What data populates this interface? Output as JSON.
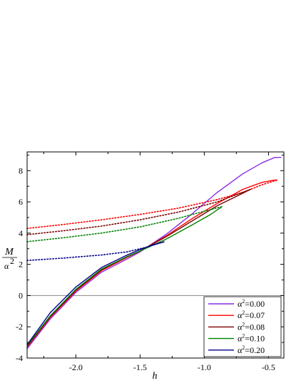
{
  "chart_data": {
    "type": "line",
    "title": "",
    "xlabel": "h",
    "ylabel_num": "M",
    "ylabel_den_base": "α",
    "ylabel_den_exp": "2",
    "xlim": [
      -2.38,
      -0.38
    ],
    "ylim": [
      -4,
      9.2
    ],
    "xticks": [
      -2.0,
      -1.5,
      -1.0,
      -0.5
    ],
    "xtick_labels": [
      "-2.0",
      "-1.5",
      "-1.0",
      "-0.5"
    ],
    "yticks": [
      -4,
      -2,
      0,
      2,
      4,
      6,
      8
    ],
    "ytick_labels": [
      "-4",
      "-2",
      "0",
      "2",
      "4",
      "6",
      "8"
    ],
    "zero_line": true,
    "grid": false,
    "legend_position": "bottom-right",
    "series": [
      {
        "name": "α²=0.00",
        "legend_base": "α",
        "legend_exp": "2",
        "legend_tail": "=0.00",
        "color": "#8a2be2",
        "solid": [
          [
            -2.38,
            -3.4
          ],
          [
            -2.2,
            -1.5
          ],
          [
            -2.0,
            0.2
          ],
          [
            -1.8,
            1.5
          ],
          [
            -1.6,
            2.35
          ],
          [
            -1.5,
            2.8
          ],
          [
            -1.3,
            3.9
          ],
          [
            -1.1,
            5.2
          ],
          [
            -0.9,
            6.6
          ],
          [
            -0.7,
            7.8
          ],
          [
            -0.55,
            8.5
          ],
          [
            -0.45,
            8.85
          ],
          [
            -0.4,
            8.85
          ]
        ],
        "dotted": []
      },
      {
        "name": "α²=0.07",
        "legend_base": "α",
        "legend_exp": "2",
        "legend_tail": "=0.07",
        "color": "#ff0000",
        "solid": [
          [
            -2.38,
            -3.3
          ],
          [
            -2.2,
            -1.4
          ],
          [
            -2.0,
            0.3
          ],
          [
            -1.8,
            1.6
          ],
          [
            -1.6,
            2.45
          ],
          [
            -1.5,
            2.85
          ],
          [
            -1.3,
            3.8
          ],
          [
            -1.1,
            4.9
          ],
          [
            -0.9,
            5.9
          ],
          [
            -0.7,
            6.8
          ],
          [
            -0.55,
            7.25
          ],
          [
            -0.45,
            7.4
          ],
          [
            -0.43,
            7.4
          ]
        ],
        "dotted": [
          [
            -2.38,
            4.3
          ],
          [
            -2.1,
            4.55
          ],
          [
            -1.8,
            4.85
          ],
          [
            -1.5,
            5.2
          ],
          [
            -1.2,
            5.6
          ],
          [
            -0.9,
            6.15
          ],
          [
            -0.7,
            6.6
          ],
          [
            -0.55,
            7.1
          ],
          [
            -0.43,
            7.4
          ]
        ]
      },
      {
        "name": "α²=0.08",
        "legend_base": "α",
        "legend_exp": "2",
        "legend_tail": "=0.08",
        "color": "#7a0000",
        "solid": [
          [
            -2.38,
            -3.25
          ],
          [
            -2.2,
            -1.35
          ],
          [
            -2.0,
            0.35
          ],
          [
            -1.8,
            1.65
          ],
          [
            -1.6,
            2.5
          ],
          [
            -1.5,
            2.85
          ],
          [
            -1.3,
            3.75
          ],
          [
            -1.1,
            4.75
          ],
          [
            -0.9,
            5.75
          ],
          [
            -0.75,
            6.35
          ],
          [
            -0.64,
            6.8
          ]
        ],
        "dotted": [
          [
            -2.38,
            3.9
          ],
          [
            -2.1,
            4.15
          ],
          [
            -1.8,
            4.45
          ],
          [
            -1.5,
            4.85
          ],
          [
            -1.2,
            5.35
          ],
          [
            -0.9,
            6.0
          ],
          [
            -0.64,
            6.8
          ]
        ]
      },
      {
        "name": "α²=0.10",
        "legend_base": "α",
        "legend_exp": "2",
        "legend_tail": "=0.10",
        "color": "#008000",
        "solid": [
          [
            -2.38,
            -3.2
          ],
          [
            -2.2,
            -1.3
          ],
          [
            -2.0,
            0.4
          ],
          [
            -1.8,
            1.7
          ],
          [
            -1.6,
            2.5
          ],
          [
            -1.5,
            2.85
          ],
          [
            -1.3,
            3.6
          ],
          [
            -1.1,
            4.5
          ],
          [
            -0.95,
            5.2
          ],
          [
            -0.86,
            5.7
          ]
        ],
        "dotted": [
          [
            -2.38,
            3.45
          ],
          [
            -2.1,
            3.7
          ],
          [
            -1.8,
            4.0
          ],
          [
            -1.5,
            4.4
          ],
          [
            -1.2,
            4.95
          ],
          [
            -1.0,
            5.4
          ],
          [
            -0.86,
            5.7
          ]
        ]
      },
      {
        "name": "α²=0.20",
        "legend_base": "α",
        "legend_exp": "2",
        "legend_tail": "=0.20",
        "color": "#00008b",
        "solid": [
          [
            -2.38,
            -3.15
          ],
          [
            -2.2,
            -1.1
          ],
          [
            -2.0,
            0.55
          ],
          [
            -1.8,
            1.8
          ],
          [
            -1.6,
            2.6
          ],
          [
            -1.5,
            2.95
          ],
          [
            -1.4,
            3.25
          ],
          [
            -1.31,
            3.45
          ]
        ],
        "dotted": [
          [
            -2.38,
            2.25
          ],
          [
            -2.1,
            2.4
          ],
          [
            -1.8,
            2.6
          ],
          [
            -1.6,
            2.8
          ],
          [
            -1.45,
            3.1
          ],
          [
            -1.31,
            3.45
          ]
        ]
      }
    ]
  }
}
